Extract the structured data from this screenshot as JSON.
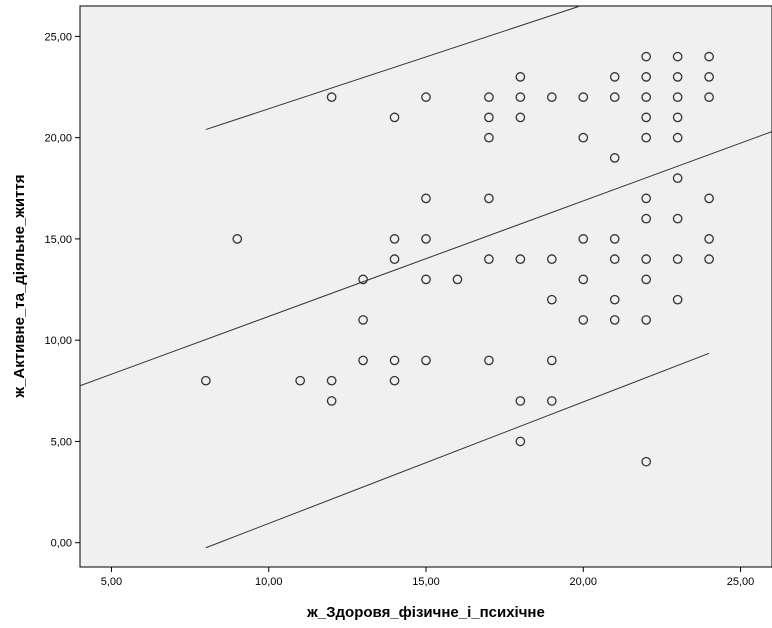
{
  "chart_data": {
    "type": "scatter",
    "xlabel": "ж_Здоровя_фізичне_і_психічне",
    "ylabel": "ж_Активне_та_діяльне_життя",
    "xlim": [
      4,
      26
    ],
    "ylim": [
      -1.2,
      26.5
    ],
    "x_ticks": [
      5,
      10,
      15,
      20,
      25
    ],
    "x_tick_labels": [
      "5,00",
      "10,00",
      "15,00",
      "20,00",
      "25,00"
    ],
    "y_ticks": [
      0,
      5,
      10,
      15,
      20,
      25
    ],
    "y_tick_labels": [
      "0,00",
      "5,00",
      "10,00",
      "15,00",
      "20,00",
      "25,00"
    ],
    "grid": false,
    "colors": {
      "plot_background": "#f0f0f0",
      "marker_stroke": "#333333",
      "line": "#333333"
    },
    "points": [
      [
        8,
        8
      ],
      [
        9,
        15
      ],
      [
        11,
        8
      ],
      [
        12,
        22
      ],
      [
        12,
        8
      ],
      [
        12,
        7
      ],
      [
        13,
        13
      ],
      [
        13,
        11
      ],
      [
        13,
        9
      ],
      [
        14,
        21
      ],
      [
        14,
        15
      ],
      [
        14,
        14
      ],
      [
        14,
        9
      ],
      [
        14,
        8
      ],
      [
        15,
        22
      ],
      [
        15,
        17
      ],
      [
        15,
        15
      ],
      [
        15,
        13
      ],
      [
        15,
        9
      ],
      [
        16,
        13
      ],
      [
        17,
        22
      ],
      [
        17,
        21
      ],
      [
        17,
        20
      ],
      [
        17,
        17
      ],
      [
        17,
        14
      ],
      [
        17,
        9
      ],
      [
        18,
        23
      ],
      [
        18,
        22
      ],
      [
        18,
        21
      ],
      [
        18,
        14
      ],
      [
        18,
        7
      ],
      [
        18,
        5
      ],
      [
        19,
        22
      ],
      [
        19,
        14
      ],
      [
        19,
        12
      ],
      [
        19,
        9
      ],
      [
        19,
        7
      ],
      [
        20,
        22
      ],
      [
        20,
        20
      ],
      [
        20,
        15
      ],
      [
        20,
        13
      ],
      [
        20,
        11
      ],
      [
        21,
        23
      ],
      [
        21,
        22
      ],
      [
        21,
        19
      ],
      [
        21,
        15
      ],
      [
        21,
        14
      ],
      [
        21,
        12
      ],
      [
        21,
        11
      ],
      [
        22,
        24
      ],
      [
        22,
        23
      ],
      [
        22,
        22
      ],
      [
        22,
        21
      ],
      [
        22,
        20
      ],
      [
        22,
        17
      ],
      [
        22,
        16
      ],
      [
        22,
        14
      ],
      [
        22,
        13
      ],
      [
        22,
        11
      ],
      [
        22,
        4
      ],
      [
        23,
        24
      ],
      [
        23,
        23
      ],
      [
        23,
        22
      ],
      [
        23,
        21
      ],
      [
        23,
        20
      ],
      [
        23,
        18
      ],
      [
        23,
        16
      ],
      [
        23,
        14
      ],
      [
        23,
        12
      ],
      [
        24,
        24
      ],
      [
        24,
        23
      ],
      [
        24,
        22
      ],
      [
        24,
        17
      ],
      [
        24,
        15
      ],
      [
        24,
        14
      ]
    ],
    "fit_line": {
      "x": [
        4,
        26
      ],
      "y": [
        7.75,
        20.3
      ]
    },
    "upper_bound": {
      "x": [
        8,
        19.9
      ],
      "y": [
        20.4,
        26.5
      ]
    },
    "lower_bound": {
      "x": [
        8,
        24
      ],
      "y": [
        -0.25,
        9.35
      ]
    }
  }
}
